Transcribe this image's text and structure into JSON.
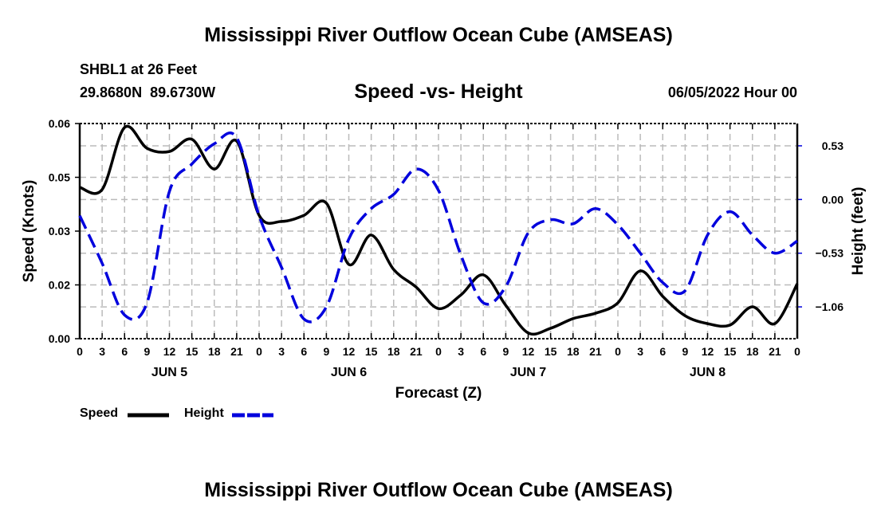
{
  "chart_data": {
    "type": "line",
    "title": "Mississippi River Outflow Ocean Cube (AMSEAS)",
    "subtitle": "Speed -vs- Height",
    "station": "SHBL1 at 26 Feet",
    "location": "29.8680N  89.6730W",
    "datetime": "06/05/2022 Hour 00",
    "footer_title": "Mississippi River Outflow Ocean Cube (AMSEAS)",
    "xlabel": "Forecast (Z)",
    "ylabel": "Speed (Knots)",
    "y2label": "Height (feet)",
    "x_hours": [
      0,
      3,
      6,
      9,
      12,
      15,
      18,
      21,
      24,
      27,
      30,
      33,
      36,
      39,
      42,
      45,
      48,
      51,
      54,
      57,
      60,
      63,
      66,
      69,
      72,
      75,
      78,
      81,
      84,
      87,
      90,
      93,
      96
    ],
    "x_tick_labels": [
      "0",
      "3",
      "6",
      "9",
      "12",
      "15",
      "18",
      "21",
      "0",
      "3",
      "6",
      "9",
      "12",
      "15",
      "18",
      "21",
      "0",
      "3",
      "6",
      "9",
      "12",
      "15",
      "18",
      "21",
      "0",
      "3",
      "6",
      "9",
      "12",
      "15",
      "18",
      "21",
      "0"
    ],
    "day_labels": [
      "JUN 5",
      "JUN 6",
      "JUN 7",
      "JUN 8"
    ],
    "ylim": [
      0,
      0.06
    ],
    "y_tick_labels": [
      "0.00",
      "0.02",
      "0.03",
      "0.05",
      "0.06"
    ],
    "y_tick_values": [
      0,
      0.015,
      0.03,
      0.045,
      0.06
    ],
    "y2lim": [
      -1.374,
      0.75
    ],
    "y2_tick_labels": [
      "-1.06",
      "-0.53",
      "0.00",
      "0.53"
    ],
    "y2_tick_values": [
      -1.06,
      -0.53,
      0,
      0.53
    ],
    "grid": true,
    "legend_position": "bottom-left",
    "series": [
      {
        "name": "Speed",
        "axis": "left",
        "color": "#000000",
        "style": "solid",
        "values": [
          0.0422,
          0.0416,
          0.0589,
          0.0531,
          0.0522,
          0.0556,
          0.0473,
          0.0551,
          0.0344,
          0.0327,
          0.0344,
          0.0378,
          0.0207,
          0.0289,
          0.0193,
          0.0144,
          0.0084,
          0.0122,
          0.0178,
          0.0093,
          0.0016,
          0.0029,
          0.0056,
          0.0071,
          0.01,
          0.0189,
          0.0118,
          0.0064,
          0.0042,
          0.0038,
          0.0089,
          0.0042,
          0.0153
        ]
      },
      {
        "name": "Height",
        "axis": "right",
        "color": "#0000dd",
        "style": "dashed",
        "values": [
          -0.16,
          -0.63,
          -1.14,
          -1.02,
          0.08,
          0.35,
          0.55,
          0.61,
          -0.16,
          -0.67,
          -1.18,
          -1.06,
          -0.39,
          -0.09,
          0.05,
          0.3,
          0.09,
          -0.55,
          -1.02,
          -0.86,
          -0.33,
          -0.2,
          -0.24,
          -0.09,
          -0.25,
          -0.53,
          -0.82,
          -0.9,
          -0.35,
          -0.12,
          -0.35,
          -0.53,
          -0.41
        ]
      }
    ]
  }
}
